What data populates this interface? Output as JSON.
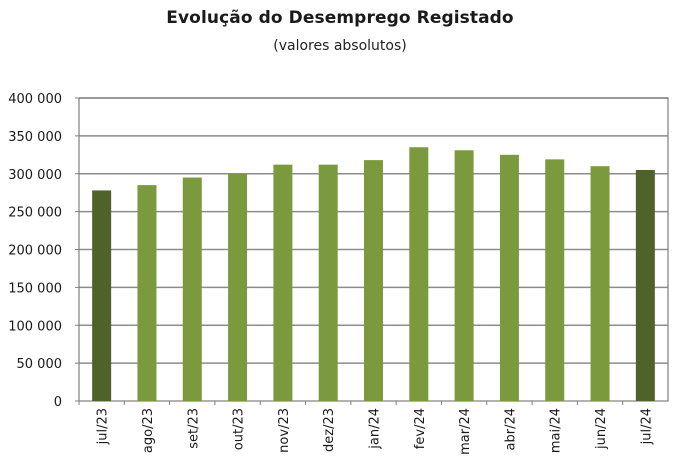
{
  "chart_data": {
    "type": "bar",
    "title": "Evolução do Desemprego Registado",
    "subtitle": "(valores absolutos)",
    "categories": [
      "jul/23",
      "ago/23",
      "set/23",
      "out/23",
      "nov/23",
      "dez/23",
      "jan/24",
      "fev/24",
      "mar/24",
      "abr/24",
      "mai/24",
      "jun/24",
      "jul/24"
    ],
    "values": [
      278000,
      285000,
      295000,
      300000,
      312000,
      312000,
      318000,
      335000,
      331000,
      325000,
      319000,
      310000,
      305000
    ],
    "ylim": [
      0,
      400000
    ],
    "yticks": [
      0,
      50000,
      100000,
      150000,
      200000,
      250000,
      300000,
      350000,
      400000
    ],
    "ytick_labels": [
      "0",
      "50 000",
      "100 000",
      "150 000",
      "200 000",
      "250 000",
      "300 000",
      "350 000",
      "400 000"
    ],
    "grid": true,
    "colors": {
      "bar": "#7a9a3d",
      "highlight": "#4f6328",
      "grid": "#8c8c8c",
      "axis": "#7f7f7f"
    },
    "highlight_indices": [
      0,
      12
    ]
  }
}
